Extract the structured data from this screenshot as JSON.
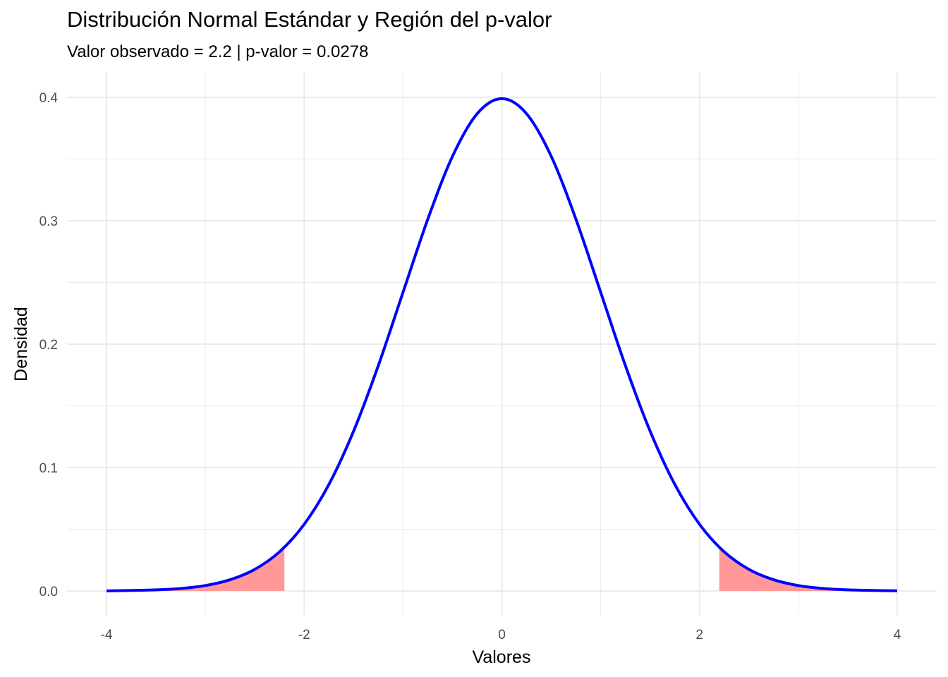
{
  "chart_data": {
    "type": "line",
    "title": "Distribución Normal Estándar y Región del p-valor",
    "subtitle": "Valor observado = 2.2 | p-valor = 0.0278",
    "xlabel": "Valores",
    "ylabel": "Densidad",
    "xlim": [
      -4,
      4
    ],
    "ylim": [
      0,
      0.4
    ],
    "x_ticks": [
      -4,
      -2,
      0,
      2,
      4
    ],
    "x_tick_labels": [
      "-4",
      "-2",
      "0",
      "2",
      "4"
    ],
    "y_ticks": [
      0.0,
      0.1,
      0.2,
      0.3,
      0.4
    ],
    "y_tick_labels": [
      "0.0",
      "0.1",
      "0.2",
      "0.3",
      "0.4"
    ],
    "grid": true,
    "series": [
      {
        "type": "line",
        "color": "#0000ff",
        "x": [
          -4.0,
          -3.75,
          -3.5,
          -3.25,
          -3.0,
          -2.75,
          -2.5,
          -2.25,
          -2.0,
          -1.75,
          -1.5,
          -1.25,
          -1.0,
          -0.75,
          -0.5,
          -0.25,
          0.0,
          0.25,
          0.5,
          0.75,
          1.0,
          1.25,
          1.5,
          1.75,
          2.0,
          2.25,
          2.5,
          2.75,
          3.0,
          3.25,
          3.5,
          3.75,
          4.0
        ],
        "y": [
          0.0001,
          0.0004,
          0.0009,
          0.002,
          0.0044,
          0.0091,
          0.0175,
          0.0317,
          0.054,
          0.0863,
          0.1295,
          0.1826,
          0.242,
          0.3011,
          0.3521,
          0.3867,
          0.3989,
          0.3867,
          0.3521,
          0.3011,
          0.242,
          0.1826,
          0.1295,
          0.0863,
          0.054,
          0.0317,
          0.0175,
          0.0091,
          0.0044,
          0.002,
          0.0009,
          0.0004,
          0.0001
        ]
      }
    ],
    "shaded_regions": [
      {
        "type": "area",
        "color": "#ff9999",
        "x": [
          -4.0,
          -3.75,
          -3.5,
          -3.25,
          -3.0,
          -2.75,
          -2.5,
          -2.2
        ],
        "y": [
          0.0001,
          0.0004,
          0.0009,
          0.002,
          0.0044,
          0.0091,
          0.0175,
          0.0355
        ]
      },
      {
        "type": "area",
        "color": "#ff9999",
        "x": [
          2.2,
          2.5,
          2.75,
          3.0,
          3.25,
          3.5,
          3.75,
          4.0
        ],
        "y": [
          0.0355,
          0.0175,
          0.0091,
          0.0044,
          0.002,
          0.0009,
          0.0004,
          0.0001
        ]
      }
    ]
  }
}
